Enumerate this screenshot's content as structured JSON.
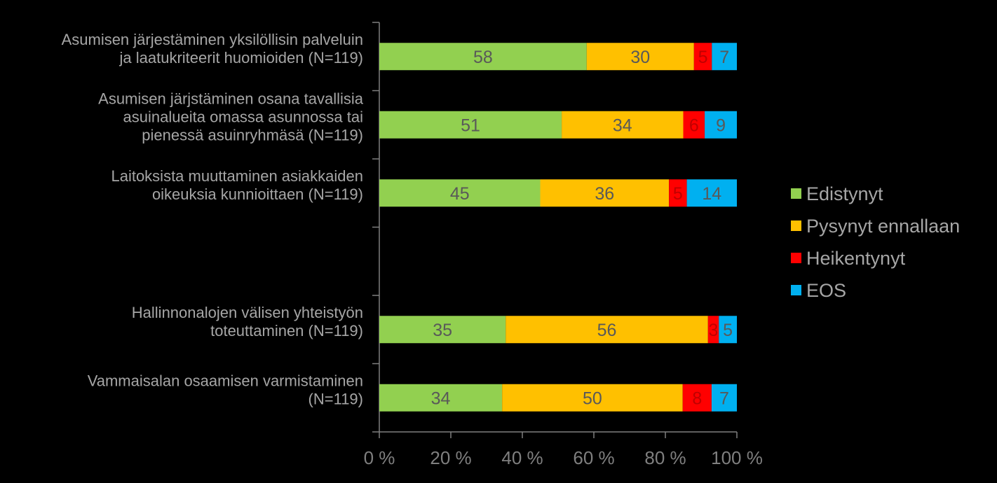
{
  "chart_data": {
    "type": "bar",
    "orientation": "horizontal",
    "stacked": "percent",
    "categories": [
      [
        "Asumisen järjestäminen yksilöllisin palveluin",
        "ja laatukriteerit huomioiden (N=119)"
      ],
      [
        "Asumisen järjstäminen osana tavallisia",
        "asuinalueita omassa asunnossa tai",
        "pienessä asuinryhmäsä (N=119)"
      ],
      [
        "Laitoksista muuttaminen asiakkaiden",
        "oikeuksia kunnioittaen (N=119)"
      ],
      [],
      [
        "Hallinnonalojen välisen yhteistyön",
        "toteuttaminen (N=119)"
      ],
      [
        "Vammaisalan osaamisen varmistaminen",
        "(N=119)"
      ]
    ],
    "series": [
      {
        "name": "Edistynyt",
        "color": "#92d050",
        "label_color": "#595959",
        "values": [
          58,
          51,
          45,
          null,
          35,
          34
        ]
      },
      {
        "name": "Pysynyt ennallaan",
        "color": "#ffc000",
        "label_color": "#595959",
        "values": [
          30,
          34,
          36,
          null,
          56,
          50
        ]
      },
      {
        "name": "Heikentynyt",
        "color": "#ff0000",
        "label_color": "#c00000",
        "values": [
          5,
          6,
          5,
          null,
          3,
          8
        ]
      },
      {
        "name": "EOS",
        "color": "#00b0f0",
        "label_color": "#595959",
        "values": [
          7,
          9,
          14,
          null,
          5,
          7
        ]
      }
    ],
    "xticks": [
      "0 %",
      "20 %",
      "40 %",
      "60 %",
      "80 %",
      "100 %"
    ],
    "xlim": [
      0,
      100
    ],
    "legend_position": "right",
    "grid": false
  }
}
